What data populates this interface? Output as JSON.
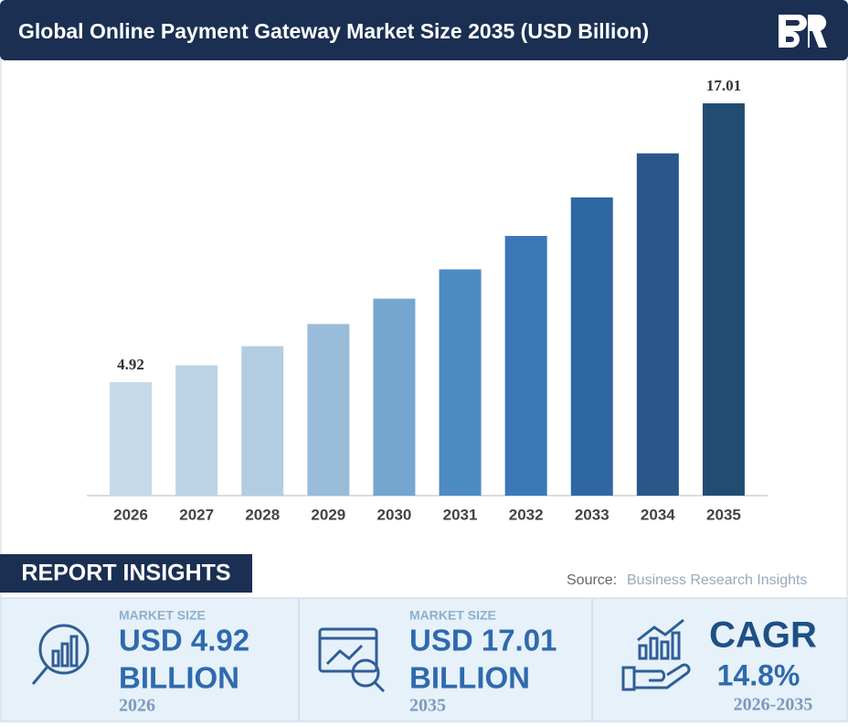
{
  "chart_data": {
    "type": "bar",
    "title": "Global Online Payment Gateway Market Size 2035 (USD Billion)",
    "categories": [
      "2026",
      "2027",
      "2028",
      "2029",
      "2030",
      "2031",
      "2032",
      "2033",
      "2034",
      "2035"
    ],
    "values": [
      4.92,
      5.65,
      6.48,
      7.44,
      8.54,
      9.81,
      11.26,
      12.93,
      14.84,
      17.01
    ],
    "value_labels": [
      "4.92",
      null,
      null,
      null,
      null,
      null,
      null,
      null,
      null,
      "17.01"
    ],
    "colors": [
      "#c6d9e8",
      "#bcd3e5",
      "#b2cde2",
      "#98bcd9",
      "#75a6cf",
      "#4d8bc3",
      "#3a78b8",
      "#2f67a3",
      "#2a578a",
      "#234c72"
    ],
    "ylim": [
      0,
      18
    ]
  },
  "insights": {
    "heading": "REPORT INSIGHTS",
    "source_label": "Source:",
    "source": "Business Research Insights",
    "cards": [
      {
        "label": "MARKET SIZE",
        "value": "USD 4.92",
        "unit": "BILLION",
        "year": "2026"
      },
      {
        "label": "MARKET SIZE",
        "value": "USD 17.01",
        "unit": "BILLION",
        "year": "2035"
      },
      {
        "label": "CAGR",
        "value": "14.8%",
        "year": "2026-2035"
      }
    ]
  }
}
